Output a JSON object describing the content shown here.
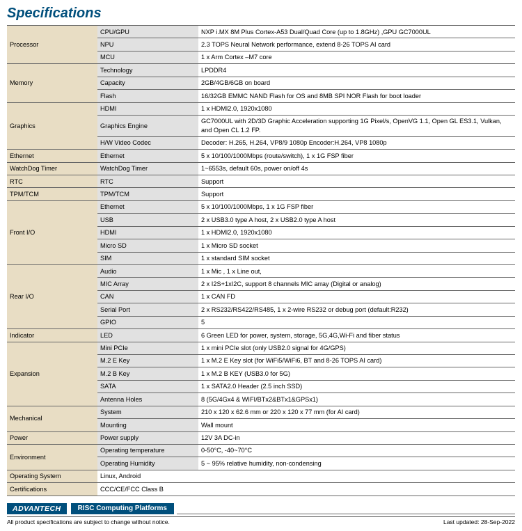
{
  "title": "Specifications",
  "rows": [
    {
      "cat": "Processor",
      "catspan": 3,
      "sub": "CPU/GPU",
      "val": "NXP i.MX 8M Plus Cortex-A53 Dual/Quad Core (up to 1.8GHz) ,GPU GC7000UL"
    },
    {
      "sub": "NPU",
      "val": "2.3 TOPS Neural Network performance, extend 8-26 TOPS AI card"
    },
    {
      "sub": "MCU",
      "val": "1 x Arm Cortex –M7 core"
    },
    {
      "cat": "Memory",
      "catspan": 3,
      "sub": "Technology",
      "val": "LPDDR4"
    },
    {
      "sub": "Capacity",
      "val": "2GB/4GB/6GB on board"
    },
    {
      "sub": "Flash",
      "val": "16/32GB EMMC NAND Flash for OS and 8MB SPI NOR Flash for  boot loader"
    },
    {
      "cat": "Graphics",
      "catspan": 3,
      "sub": "HDMI",
      "val": "1 x HDMI2.0, 1920x1080"
    },
    {
      "sub": "Graphics Engine",
      "val": "GC7000UL with 2D/3D Graphic Acceleration supporting 1G Pixel/s, OpenVG 1.1, Open GL ES3.1, Vulkan, and Open CL 1.2 FP."
    },
    {
      "sub": "H/W Video Codec",
      "val": "Decoder: H.265, H.264, VP8/9 1080p Encoder:H.264, VP8 1080p"
    },
    {
      "cat": "Ethernet",
      "catspan": 1,
      "sub": "Ethernet",
      "val": "5 x 10/100/1000Mbps (route/switch), 1 x 1G FSP fiber"
    },
    {
      "cat": "WatchDog Timer",
      "catspan": 1,
      "sub": "WatchDog Timer",
      "val": "1~6553s, default 60s, power on/off 4s"
    },
    {
      "cat": "RTC",
      "catspan": 1,
      "sub": "RTC",
      "val": "Support"
    },
    {
      "cat": "TPM/TCM",
      "catspan": 1,
      "sub": "TPM/TCM",
      "val": "Support"
    },
    {
      "cat": "Front I/O",
      "catspan": 5,
      "sub": "Ethernet",
      "val": "5 x 10/100/1000Mbps, 1 x 1G FSP fiber"
    },
    {
      "sub": "USB",
      "val": "2 x USB3.0 type A host, 2 x USB2.0 type A host"
    },
    {
      "sub": "HDMI",
      "val": "1 x HDMI2.0, 1920x1080"
    },
    {
      "sub": "Micro SD",
      "val": "1 x Micro SD socket"
    },
    {
      "sub": "SIM",
      "val": "1 x standard SIM socket"
    },
    {
      "cat": "Rear I/O",
      "catspan": 5,
      "sub": "Audio",
      "val": "1 x Mic , 1 x Line out,"
    },
    {
      "sub": "MIC Array",
      "val": "2 x I2S+1xI2C, support 8 channels  MIC array (Digital or analog)"
    },
    {
      "sub": "CAN",
      "val": "1 x CAN FD"
    },
    {
      "sub": "Serial Port",
      "val": "2 x RS232/RS422/RS485, 1 x 2-wire RS232 or debug port (default:R232)"
    },
    {
      "sub": "GPIO",
      "val": "5"
    },
    {
      "cat": "Indicator",
      "catspan": 1,
      "sub": "LED",
      "val": "6 Green LED for power, system, storage, 5G,4G,Wi-Fi and fiber status"
    },
    {
      "cat": "Expansion",
      "catspan": 5,
      "sub": "Mini PCIe",
      "val": "1 x mini PCIe slot (only USB2.0 signal for 4G/GPS)"
    },
    {
      "sub": "M.2  E Key",
      "val": "1 x M.2 E Key slot (for WiFi5/WiFi6, BT and 8-26 TOPS AI card)"
    },
    {
      "sub": "M.2  B Key",
      "val": "1 x M.2 B KEY (USB3.0 for 5G)"
    },
    {
      "sub": "SATA",
      "val": "1 x SATA2.0 Header (2.5 inch SSD)"
    },
    {
      "sub": "Antenna Holes",
      "val": "8 (5G/4Gx4 & WIFI/BTx2&BTx1&GPSx1)"
    },
    {
      "cat": "Mechanical",
      "catspan": 2,
      "sub": "System",
      "val": "210 x 120 x 62.6 mm or 220 x 120 x 77 mm (for AI card)"
    },
    {
      "sub": "Mounting",
      "val": "Wall mount"
    },
    {
      "cat": "Power",
      "catspan": 1,
      "sub": "Power supply",
      "val": "12V 3A DC-in"
    },
    {
      "cat": "Environment",
      "catspan": 2,
      "sub": "Operating temperature",
      "val": "0-50°C, -40~70°C"
    },
    {
      "sub": "Operating Humidity",
      "val": "5 ~ 95% relative humidity, non-condensing"
    },
    {
      "cat": "Operating System",
      "catspan": 1,
      "sub": "",
      "val": "Linux, Android",
      "span2": true
    },
    {
      "cat": "Certifications",
      "catspan": 1,
      "sub": "",
      "val": "CCC/CE/FCC Class B",
      "span2": true
    }
  ],
  "footer": {
    "brand": "ADVANTECH",
    "platform": "RISC Computing Platforms",
    "disclaimer": "All product specifications are subject to change without notice.",
    "updated": "Last updated: 28-Sep-2022"
  }
}
